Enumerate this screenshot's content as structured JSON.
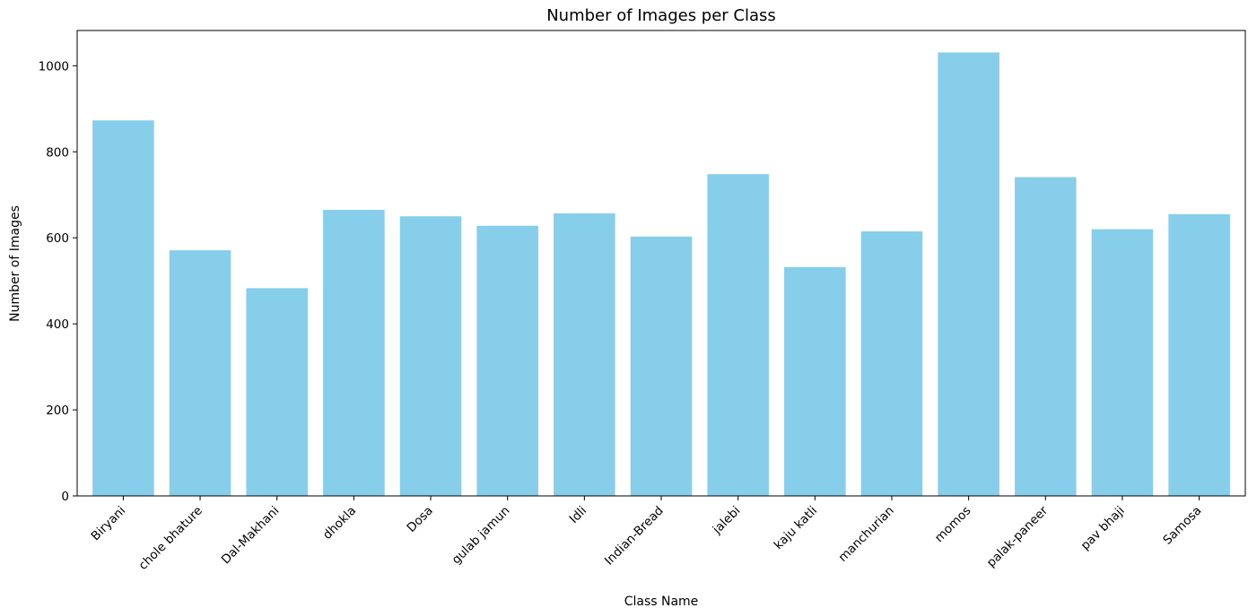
{
  "chart_data": {
    "type": "bar",
    "title": "Number of Images per Class",
    "xlabel": "Class Name",
    "ylabel": "Number of Images",
    "categories": [
      "Biryani",
      "chole bhature",
      "Dal-Makhani",
      "dhokla",
      "Dosa",
      "gulab jamun",
      "Idli",
      "Indian-Bread",
      "jalebi",
      "kaju katli",
      "manchurian",
      "momos",
      "palak-paneer",
      "pav bhaji",
      "Samosa"
    ],
    "values": [
      873,
      571,
      483,
      665,
      650,
      628,
      657,
      603,
      748,
      532,
      615,
      1031,
      741,
      620,
      655
    ],
    "yticks": [
      0,
      200,
      400,
      600,
      800,
      1000
    ],
    "ylim": [
      0,
      1082
    ],
    "grid": false,
    "bar_color": "#87ceeb",
    "xtick_rotation": "45deg"
  }
}
